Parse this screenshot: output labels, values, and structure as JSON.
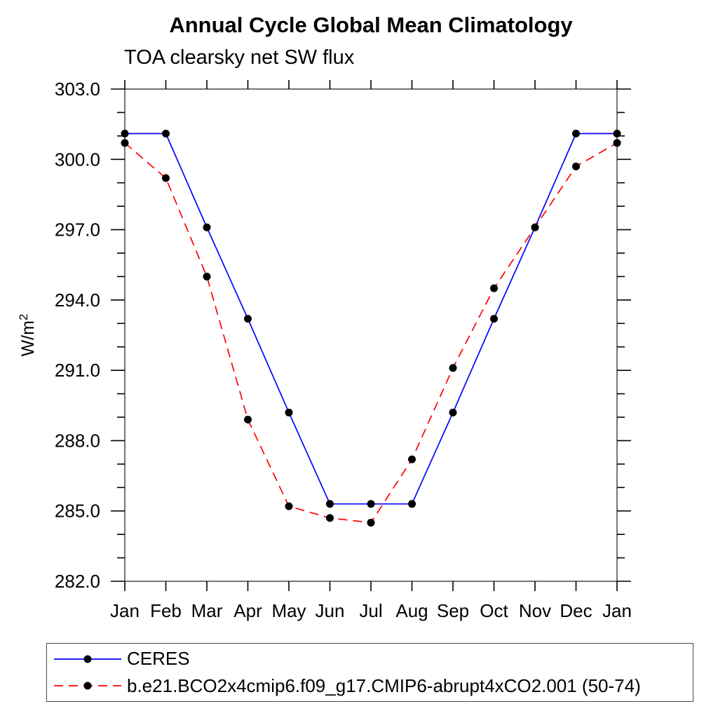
{
  "page": {
    "title": "Annual Cycle Global Mean Climatology",
    "subtitle": "TOA clearsky net SW flux"
  },
  "chart_data": {
    "type": "line",
    "title": "Annual Cycle Global Mean Climatology",
    "subtitle": "TOA clearsky net SW flux",
    "ylabel": "W/m²",
    "ylabel_base": "W/m",
    "ylabel_sup": "2",
    "xlabel": "",
    "categories": [
      "Jan",
      "Feb",
      "Mar",
      "Apr",
      "May",
      "Jun",
      "Jul",
      "Aug",
      "Sep",
      "Oct",
      "Nov",
      "Dec",
      "Jan"
    ],
    "ylim": [
      282.0,
      303.0
    ],
    "y_major_ticks": [
      282.0,
      285.0,
      288.0,
      291.0,
      294.0,
      297.0,
      300.0,
      303.0
    ],
    "y_minor_interval": 1.0,
    "grid": "off",
    "legend_position": "bottom-left-box",
    "series": [
      {
        "name": "CERES",
        "line_color": "#0000ff",
        "line_style": "solid",
        "marker": "filled-circle",
        "marker_color": "#000000",
        "values": [
          301.1,
          301.1,
          297.1,
          293.2,
          289.2,
          285.3,
          285.3,
          285.3,
          289.2,
          293.2,
          297.1,
          301.1,
          301.1
        ]
      },
      {
        "name": "b.e21.BCO2x4cmip6.f09_g17.CMIP6-abrupt4xCO2.001 (50-74)",
        "line_color": "#ff0000",
        "line_style": "dashed",
        "marker": "filled-circle",
        "marker_color": "#000000",
        "values": [
          300.7,
          299.2,
          295.0,
          288.9,
          285.2,
          284.7,
          284.5,
          287.2,
          291.1,
          294.5,
          297.1,
          299.7,
          300.7
        ]
      }
    ]
  }
}
